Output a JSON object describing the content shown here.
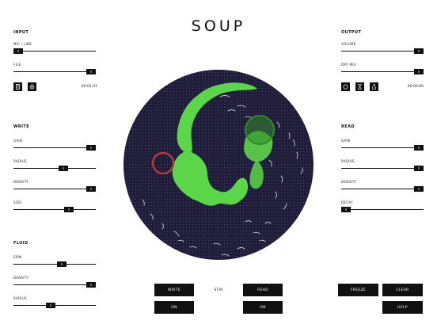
{
  "app": {
    "title": "SOUP"
  },
  "input": {
    "section": "INPUT",
    "mic_line_label": "MIC / LINE",
    "mic_line_level": 0.0,
    "file_label": "FILE",
    "file_level": 1.0,
    "time": "00:01:01",
    "icons": [
      "trash-icon",
      "eject-icon"
    ]
  },
  "output": {
    "section": "OUTPUT",
    "volume_label": "VOLUME",
    "volume_level": 1.0,
    "dry_mix_label": "DRY MIX",
    "dry_mix_level": 1.0,
    "time": "00:00:00",
    "icons": [
      "record-icon",
      "hourglass-icon",
      "share-icon"
    ]
  },
  "write": {
    "section": "WRITE",
    "gain_label": "GAIN",
    "gain_level": 1.0,
    "radius_label": "RADIUS",
    "radius_level": 0.62,
    "density_label": "DENSITY",
    "density_level": 1.0,
    "size_label": "SIZE",
    "size_level": 0.7
  },
  "read": {
    "section": "READ",
    "gain_label": "GAIN",
    "gain_level": 1.0,
    "radius_label": "RADIUS",
    "radius_level": 1.0,
    "density_label": "DENSITY",
    "density_level": 1.0,
    "decay_label": "DECAY",
    "decay_level": 0.0
  },
  "fluid": {
    "section": "FLUID",
    "spin_label": "SPIN",
    "spin_level": 0.6,
    "density_label": "DENSITY",
    "density_level": 1.0,
    "radius_label": "RADIUS",
    "radius_level": 0.45
  },
  "bottom": {
    "write_label": "WRITE",
    "write_on_label": "ON",
    "stir_label": "STIR",
    "read_label": "READ",
    "read_on_label": "ON",
    "freeze_label": "FREEZE",
    "clear_label": "CLEAR",
    "help_label": "HELP"
  },
  "colors": {
    "background": "#ffffff",
    "control": "#111111",
    "soup_dark": "#1f1d3a",
    "soup_green": "#5fe04a",
    "write_cursor": "#b03a3a",
    "read_cursor": "#2f8a2a"
  }
}
